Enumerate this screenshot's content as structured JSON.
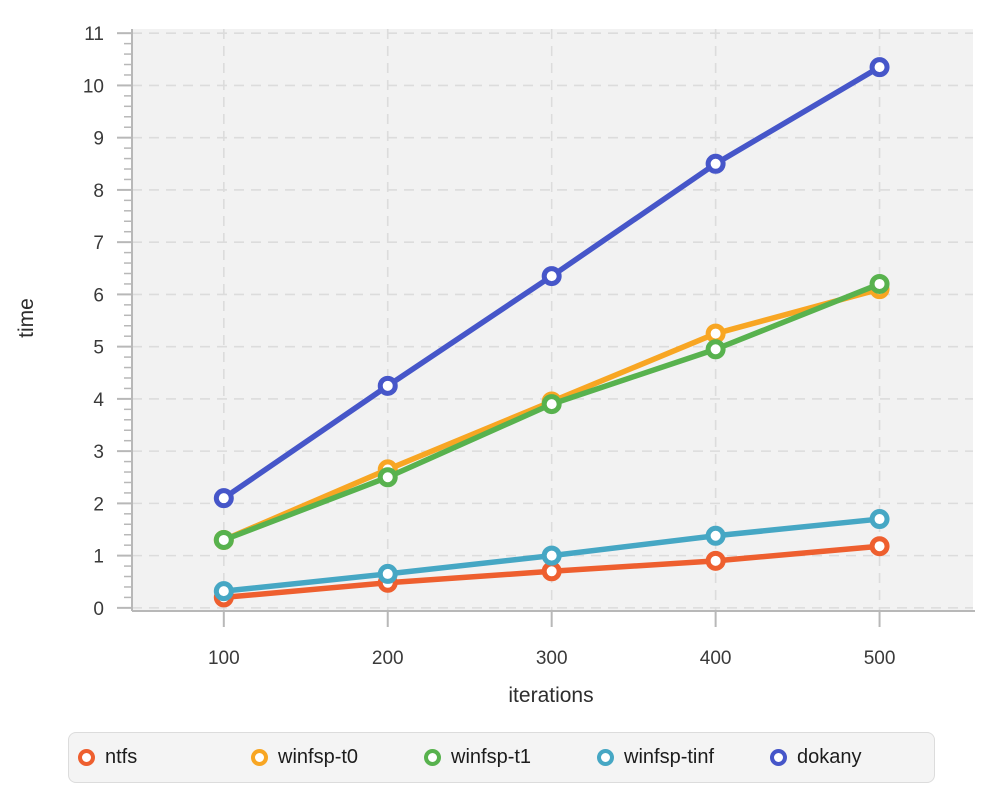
{
  "chart_data": {
    "type": "line",
    "title": "",
    "xlabel": "iterations",
    "ylabel": "time",
    "x": [
      100,
      200,
      300,
      400,
      500
    ],
    "xticks": [
      "100",
      "200",
      "300",
      "400",
      "500"
    ],
    "yticks": [
      "0",
      "1",
      "2",
      "3",
      "4",
      "5",
      "6",
      "7",
      "8",
      "9",
      "10",
      "11"
    ],
    "ylim": [
      0,
      11
    ],
    "y_minor_step": 0.2,
    "grid": "dashed",
    "legend_position": "bottom",
    "plot_bg_color": "#f2f2f2",
    "gridline_color": "#dcdcdc",
    "axis_color": "#b8b8b8",
    "tick_label_color": "#3a3a3a",
    "series": [
      {
        "name": "ntfs",
        "color": "#ee5f2f",
        "values": [
          0.2,
          0.48,
          0.7,
          0.9,
          1.18
        ]
      },
      {
        "name": "winfsp-t0",
        "color": "#f8a623",
        "values": [
          1.3,
          2.65,
          3.95,
          5.25,
          6.1
        ]
      },
      {
        "name": "winfsp-t1",
        "color": "#58b24e",
        "values": [
          1.3,
          2.5,
          3.9,
          4.95,
          6.2
        ]
      },
      {
        "name": "winfsp-tinf",
        "color": "#46a7c4",
        "values": [
          0.32,
          0.65,
          1.0,
          1.38,
          1.7
        ]
      },
      {
        "name": "dokany",
        "color": "#4656c9",
        "values": [
          2.1,
          4.25,
          6.35,
          8.5,
          10.35
        ]
      }
    ]
  }
}
